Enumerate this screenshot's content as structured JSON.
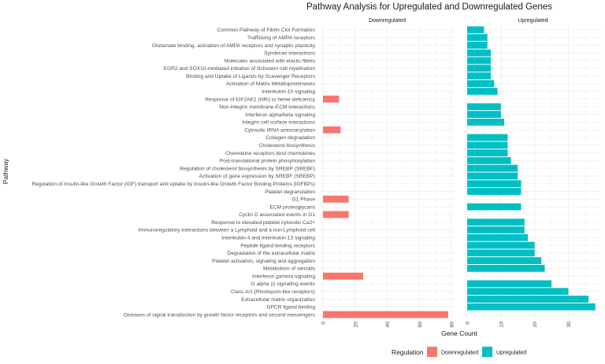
{
  "chart_data": {
    "type": "bar",
    "orientation": "horizontal",
    "title": "Pathway Analysis for Upregulated and Downregulated Genes",
    "xlabel": "Gene Count",
    "ylabel": "Pathway",
    "legend": {
      "title": "Regulation",
      "position": "bottom",
      "entries": [
        {
          "label": "Downregulated",
          "color": "#F8766D"
        },
        {
          "label": "Upregulated",
          "color": "#00BFC4"
        }
      ]
    },
    "panels": [
      {
        "label": "Downregulated",
        "xlim": [
          0,
          80
        ],
        "ticks": [
          0,
          20,
          40,
          60,
          80
        ],
        "color": "#F8766D"
      },
      {
        "label": "Upregulated",
        "xlim": [
          0,
          39
        ],
        "ticks": [
          0,
          10,
          20,
          30
        ],
        "color": "#00BFC4"
      }
    ],
    "categories": [
      "Common Pathway of Fibrin Clot Formation",
      "Trafficking of AMPA receptors",
      "Glutamate binding, activation of AMPA receptors and synaptic plasticity",
      "Syndecan interactions",
      "Molecules associated with elastic fibres",
      "EGR2 and SOX10-mediated initiation of Schwann cell myelination",
      "Binding and Uptake of Ligands by Scavenger Receptors",
      "Activation of Matrix Metalloproteinases",
      "Interleukin-10 signaling",
      "Response of EIF2AK1 (HRI) to heme deficiency",
      "Non-integrin membrane-ECM interactions",
      "Interferon alpha/beta signaling",
      "Integrin cell surface interactions",
      "Cytosolic tRNA aminoacylation",
      "Collagen degradation",
      "Cholesterol biosynthesis",
      "Chemokine receptors bind chemokines",
      "Post-translational protein phosphorylation",
      "Regulation of cholesterol biosynthesis by SREBP (SREBF)",
      "Activation of gene expression by SREBF (SREBP)",
      "Regulation of Insulin-like Growth Factor (IGF) transport and uptake by Insulin-like Growth Factor Binding Proteins (IGFBPs)",
      "Platelet degranulation",
      "G1 Phase",
      "ECM proteoglycans",
      "Cyclin D associated events in G1",
      "Response to elevated platelet cytosolic Ca2+",
      "Immunoregulatory interactions between a Lymphoid and a non-Lymphoid cell",
      "Interleukin-4 and Interleukin-13 signaling",
      "Peptide ligand-binding receptors",
      "Degradation of the extracellular matrix",
      "Platelet activation, signaling and aggregation",
      "Metabolism of steroids",
      "Interferon gamma signaling",
      "G alpha (i) signalling events",
      "Class A/1 (Rhodopsin-like receptors)",
      "Extracellular matrix organization",
      "GPCR ligand binding",
      "Diseases of signal transduction by growth factor receptors and second messengers"
    ],
    "series": [
      {
        "name": "Downregulated",
        "values": [
          0,
          0,
          0,
          0,
          0,
          0,
          0,
          0,
          0,
          10,
          0,
          0,
          0,
          11,
          0,
          0,
          0,
          0,
          0,
          0,
          0,
          0,
          16,
          0,
          16,
          0,
          0,
          0,
          0,
          0,
          0,
          0,
          25,
          0,
          0,
          0,
          0,
          78
        ]
      },
      {
        "name": "Upregulated",
        "values": [
          5,
          6,
          6,
          7,
          7,
          7,
          7,
          8,
          9,
          0,
          10,
          10,
          11,
          0,
          12,
          12,
          12,
          13,
          15,
          15,
          16,
          16,
          0,
          16,
          0,
          17,
          17,
          18,
          20,
          20,
          22,
          23,
          0,
          25,
          30,
          36,
          38,
          0
        ]
      }
    ]
  }
}
